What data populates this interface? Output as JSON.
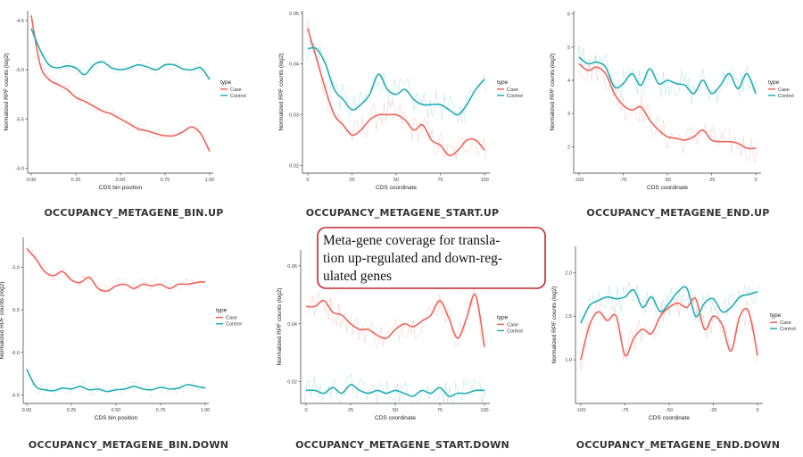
{
  "colors": {
    "case": "#F0645A",
    "control": "#23AEB5",
    "callout_border": "#C0282D"
  },
  "callout": {
    "lines": [
      "Meta-gene coverage for transla-",
      "tion up-regulated and down-reg-",
      "ulated genes"
    ]
  },
  "chart_data": [
    {
      "type": "line",
      "title": "OCCUPANCY_METAGENE_BIN.UP",
      "xlabel": "CDS bin position",
      "ylabel": "Normalized RPF counts (log2)",
      "xlim": [
        -0.02,
        1.02
      ],
      "ylim": [
        -6.05,
        -4.4
      ],
      "xticks": [
        0.0,
        0.25,
        0.5,
        0.75,
        1.0
      ],
      "xtick_labels": [
        "0.00",
        "0.25",
        "0.50",
        "0.75",
        "1.00"
      ],
      "yticks": [
        -6.0,
        -5.5,
        -5.0,
        -4.5
      ],
      "ytick_labels": [
        "-6.0",
        "-5.5",
        "-5.0",
        "-4.5"
      ],
      "legend": {
        "title": "type",
        "entries": [
          "Case",
          "Control"
        ],
        "position": "right"
      },
      "series": [
        {
          "name": "Case",
          "x": [
            0.0,
            0.05,
            0.1,
            0.15,
            0.2,
            0.25,
            0.3,
            0.35,
            0.4,
            0.45,
            0.5,
            0.55,
            0.6,
            0.65,
            0.7,
            0.75,
            0.8,
            0.85,
            0.9,
            0.95,
            1.0
          ],
          "values": [
            -4.45,
            -4.95,
            -5.1,
            -5.15,
            -5.2,
            -5.28,
            -5.32,
            -5.37,
            -5.42,
            -5.45,
            -5.5,
            -5.55,
            -5.6,
            -5.62,
            -5.65,
            -5.67,
            -5.67,
            -5.63,
            -5.58,
            -5.65,
            -5.83
          ]
        },
        {
          "name": "Control",
          "x": [
            0.0,
            0.05,
            0.1,
            0.15,
            0.2,
            0.25,
            0.3,
            0.35,
            0.4,
            0.45,
            0.5,
            0.55,
            0.6,
            0.65,
            0.7,
            0.75,
            0.8,
            0.85,
            0.9,
            0.95,
            1.0
          ],
          "values": [
            -4.58,
            -4.8,
            -4.95,
            -4.98,
            -4.96,
            -4.98,
            -5.05,
            -4.95,
            -4.92,
            -4.98,
            -5.0,
            -4.98,
            -4.95,
            -4.97,
            -5.0,
            -4.95,
            -4.95,
            -4.99,
            -5.0,
            -4.98,
            -5.1
          ]
        }
      ]
    },
    {
      "type": "line",
      "title": "OCCUPANCY_METAGENE_START.UP",
      "xlabel": "CDS coordinate",
      "ylabel": "Normalized RPF counts (log2)",
      "xlim": [
        -3,
        103
      ],
      "ylim": [
        0.0185,
        0.0505
      ],
      "xticks": [
        0,
        25,
        50,
        75,
        100
      ],
      "xtick_labels": [
        "0",
        "25",
        "50",
        "75",
        "100"
      ],
      "yticks": [
        0.02,
        0.03,
        0.04,
        0.05
      ],
      "ytick_labels": [
        "0.02",
        "0.03",
        "0.04",
        "0.05"
      ],
      "legend": {
        "title": "type",
        "entries": [
          "Case",
          "Control"
        ],
        "position": "right"
      },
      "series": [
        {
          "name": "Case",
          "x": [
            0,
            5,
            10,
            15,
            20,
            25,
            30,
            35,
            40,
            45,
            50,
            55,
            60,
            65,
            70,
            75,
            80,
            85,
            90,
            95,
            100
          ],
          "values": [
            0.047,
            0.041,
            0.035,
            0.03,
            0.028,
            0.026,
            0.027,
            0.029,
            0.03,
            0.03,
            0.03,
            0.029,
            0.027,
            0.028,
            0.025,
            0.024,
            0.022,
            0.023,
            0.025,
            0.025,
            0.023
          ]
        },
        {
          "name": "Control",
          "x": [
            0,
            5,
            10,
            15,
            20,
            25,
            30,
            35,
            40,
            45,
            50,
            55,
            60,
            65,
            70,
            75,
            80,
            85,
            90,
            95,
            100
          ],
          "values": [
            0.043,
            0.043,
            0.04,
            0.035,
            0.033,
            0.031,
            0.032,
            0.034,
            0.038,
            0.035,
            0.034,
            0.035,
            0.033,
            0.032,
            0.032,
            0.032,
            0.031,
            0.03,
            0.032,
            0.035,
            0.037
          ]
        }
      ]
    },
    {
      "type": "line",
      "title": "OCCUPANCY_METAGENE_END.UP",
      "xlabel": "CDS coordinate",
      "ylabel": "Normalized RPF counts (log2)",
      "xlim": [
        -103,
        3
      ],
      "ylim": [
        1.2,
        6.1
      ],
      "xticks": [
        -100,
        -75,
        -50,
        -25,
        0
      ],
      "xtick_labels": [
        "-100",
        "-75",
        "-50",
        "-25",
        "0"
      ],
      "yticks": [
        2,
        3,
        4,
        5,
        6
      ],
      "ytick_labels": [
        "2",
        "3",
        "4",
        "5",
        "6"
      ],
      "legend": {
        "title": "type",
        "entries": [
          "Case",
          "Control"
        ],
        "position": "right"
      },
      "series": [
        {
          "name": "Case",
          "x": [
            -100,
            -95,
            -90,
            -85,
            -80,
            -75,
            -70,
            -65,
            -60,
            -55,
            -50,
            -45,
            -40,
            -35,
            -30,
            -25,
            -20,
            -15,
            -10,
            -5,
            0
          ],
          "values": [
            4.5,
            4.3,
            4.4,
            4.2,
            3.6,
            3.25,
            3.1,
            3.2,
            2.8,
            2.5,
            2.3,
            2.25,
            2.2,
            2.3,
            2.5,
            2.2,
            2.15,
            2.15,
            2.1,
            1.95,
            1.95
          ]
        },
        {
          "name": "Control",
          "x": [
            -100,
            -95,
            -90,
            -85,
            -80,
            -75,
            -70,
            -65,
            -60,
            -55,
            -50,
            -45,
            -40,
            -35,
            -30,
            -25,
            -20,
            -15,
            -10,
            -5,
            0
          ],
          "values": [
            4.7,
            4.5,
            4.55,
            4.4,
            3.8,
            3.9,
            4.2,
            3.85,
            4.35,
            3.9,
            4.0,
            3.9,
            3.85,
            3.6,
            4.0,
            3.6,
            3.85,
            4.2,
            3.75,
            4.2,
            3.6
          ]
        }
      ]
    },
    {
      "type": "line",
      "title": "OCCUPANCY_METAGENE_BIN.DOWN",
      "xlabel": "CDS bin position",
      "ylabel": "Normalized RPF counts (log2)",
      "xlim": [
        -0.02,
        1.02
      ],
      "ylim": [
        -6.6,
        -4.65
      ],
      "xticks": [
        0.0,
        0.25,
        0.5,
        0.75,
        1.0
      ],
      "xtick_labels": [
        "0.00",
        "0.25",
        "0.50",
        "0.75",
        "1.00"
      ],
      "yticks": [
        -6.5,
        -6.0,
        -5.5,
        -5.0
      ],
      "ytick_labels": [
        "-6.5",
        "-6.0",
        "-5.5",
        "-5.0"
      ],
      "legend": {
        "title": "type",
        "entries": [
          "Case",
          "Control"
        ],
        "position": "right"
      },
      "series": [
        {
          "name": "Case",
          "x": [
            0.0,
            0.05,
            0.1,
            0.15,
            0.2,
            0.25,
            0.3,
            0.35,
            0.4,
            0.45,
            0.5,
            0.55,
            0.6,
            0.65,
            0.7,
            0.75,
            0.8,
            0.85,
            0.9,
            0.95,
            1.0
          ],
          "values": [
            -4.78,
            -4.9,
            -5.05,
            -5.1,
            -5.05,
            -5.15,
            -5.18,
            -5.12,
            -5.25,
            -5.28,
            -5.22,
            -5.2,
            -5.25,
            -5.2,
            -5.22,
            -5.2,
            -5.25,
            -5.2,
            -5.2,
            -5.18,
            -5.17
          ]
        },
        {
          "name": "Control",
          "x": [
            0.0,
            0.05,
            0.1,
            0.15,
            0.2,
            0.25,
            0.3,
            0.35,
            0.4,
            0.45,
            0.5,
            0.55,
            0.6,
            0.65,
            0.7,
            0.75,
            0.8,
            0.85,
            0.9,
            0.95,
            1.0
          ],
          "values": [
            -6.2,
            -6.4,
            -6.44,
            -6.45,
            -6.42,
            -6.43,
            -6.4,
            -6.44,
            -6.43,
            -6.46,
            -6.44,
            -6.43,
            -6.4,
            -6.43,
            -6.44,
            -6.41,
            -6.43,
            -6.42,
            -6.38,
            -6.4,
            -6.42
          ]
        }
      ]
    },
    {
      "type": "line",
      "title": "OCCUPANCY_METAGENE_START.DOWN",
      "xlabel": "CDS coordinate",
      "ylabel": "Normalized RPF counts (log2)",
      "xlim": [
        -3,
        103
      ],
      "ylim": [
        0.0125,
        0.0655
      ],
      "xticks": [
        0,
        25,
        50,
        75,
        100
      ],
      "xtick_labels": [
        "0",
        "25",
        "50",
        "75",
        "100"
      ],
      "yticks": [
        0.02,
        0.04,
        0.06
      ],
      "ytick_labels": [
        "0.02",
        "0.04",
        "0.06"
      ],
      "legend": {
        "title": "type",
        "entries": [
          "Case",
          "Control"
        ],
        "position": "right"
      },
      "series": [
        {
          "name": "Case",
          "x": [
            0,
            5,
            10,
            15,
            20,
            25,
            30,
            35,
            40,
            45,
            50,
            55,
            60,
            65,
            70,
            75,
            80,
            85,
            90,
            95,
            100
          ],
          "values": [
            0.046,
            0.046,
            0.048,
            0.044,
            0.043,
            0.04,
            0.038,
            0.038,
            0.036,
            0.035,
            0.038,
            0.04,
            0.039,
            0.041,
            0.043,
            0.048,
            0.042,
            0.035,
            0.042,
            0.05,
            0.032
          ]
        },
        {
          "name": "Control",
          "x": [
            0,
            5,
            10,
            15,
            20,
            25,
            30,
            35,
            40,
            45,
            50,
            55,
            60,
            65,
            70,
            75,
            80,
            85,
            90,
            95,
            100
          ],
          "values": [
            0.017,
            0.017,
            0.016,
            0.018,
            0.016,
            0.019,
            0.017,
            0.016,
            0.017,
            0.016,
            0.017,
            0.016,
            0.015,
            0.017,
            0.016,
            0.018,
            0.015,
            0.016,
            0.016,
            0.017,
            0.017
          ]
        }
      ]
    },
    {
      "type": "line",
      "title": "OCCUPANCY_METAGENE_END.DOWN",
      "xlabel": "CDS coordinate",
      "ylabel": "Normalized RPF counts (log2)",
      "xlim": [
        -103,
        3
      ],
      "ylim": [
        0.5,
        2.3
      ],
      "xticks": [
        -100,
        -75,
        -50,
        -25,
        0
      ],
      "xtick_labels": [
        "-100",
        "-75",
        "-50",
        "-25",
        "0"
      ],
      "yticks": [
        1.0,
        1.5,
        2.0
      ],
      "ytick_labels": [
        "1.0",
        "1.5",
        "2.0"
      ],
      "legend": {
        "title": "type",
        "entries": [
          "Case",
          "Control"
        ],
        "position": "right"
      },
      "series": [
        {
          "name": "Case",
          "x": [
            -100,
            -95,
            -90,
            -85,
            -80,
            -75,
            -70,
            -65,
            -60,
            -55,
            -50,
            -45,
            -40,
            -35,
            -30,
            -25,
            -20,
            -15,
            -10,
            -5,
            0
          ],
          "values": [
            1.0,
            1.4,
            1.55,
            1.45,
            1.5,
            1.05,
            1.25,
            1.35,
            1.3,
            1.5,
            1.6,
            1.65,
            1.6,
            1.7,
            1.35,
            1.5,
            1.4,
            1.1,
            1.5,
            1.55,
            1.05
          ]
        },
        {
          "name": "Control",
          "x": [
            -100,
            -95,
            -90,
            -85,
            -80,
            -75,
            -70,
            -65,
            -60,
            -55,
            -50,
            -45,
            -40,
            -35,
            -30,
            -25,
            -20,
            -15,
            -10,
            -5,
            0
          ],
          "values": [
            1.42,
            1.62,
            1.68,
            1.72,
            1.7,
            1.72,
            1.8,
            1.6,
            1.72,
            1.55,
            1.65,
            1.78,
            1.82,
            1.5,
            1.65,
            1.7,
            1.55,
            1.6,
            1.72,
            1.75,
            1.78
          ]
        }
      ]
    }
  ]
}
